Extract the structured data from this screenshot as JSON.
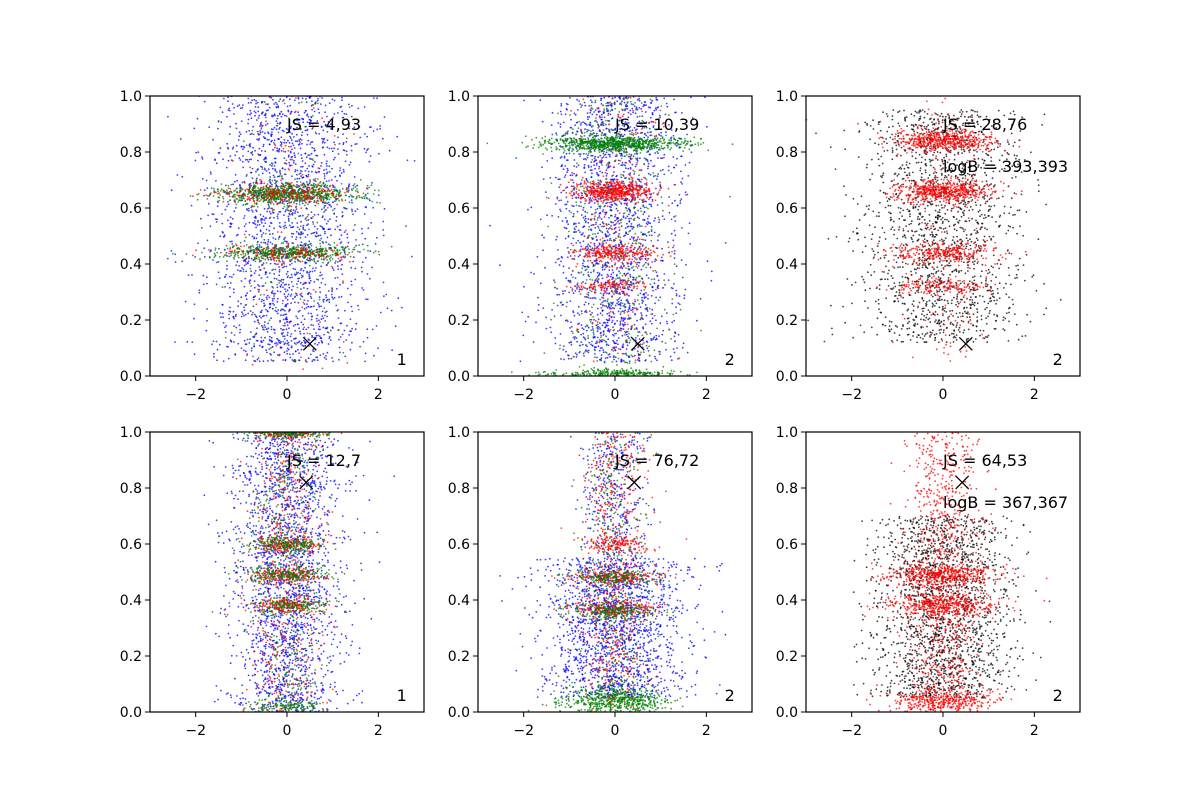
{
  "figure": {
    "title": ""
  },
  "chart_data": [
    {
      "type": "scatter",
      "panel": "top-left",
      "title": "",
      "xlabel": "",
      "ylabel": "",
      "xlim": [
        -3,
        3
      ],
      "ylim": [
        0,
        1
      ],
      "xticks": [
        -2,
        0,
        2
      ],
      "yticks": [
        0.0,
        0.2,
        0.4,
        0.6,
        0.8,
        1.0
      ],
      "xtick_labels": [
        "−2",
        "0",
        "2"
      ],
      "ytick_labels": [
        "0.0",
        "0.2",
        "0.4",
        "0.6",
        "0.8",
        "1.0"
      ],
      "series": [
        {
          "name": "blue",
          "color": "#0000ff",
          "count": 2000,
          "bands": [],
          "background": {
            "sd": 0.9,
            "ymin": 0.05,
            "ymax": 1.0
          }
        },
        {
          "name": "green",
          "color": "#008000",
          "count": 1400,
          "bands": [
            {
              "y": 0.65,
              "sd_x": 0.75,
              "sd_y": 0.018,
              "w": 0.55
            },
            {
              "y": 0.44,
              "sd_x": 0.75,
              "sd_y": 0.015,
              "w": 0.35
            }
          ],
          "background": {
            "sd": 0.6,
            "ymin": 0.02,
            "ymax": 1.0,
            "w": 0.1
          }
        },
        {
          "name": "red",
          "color": "#ff0000",
          "count": 500,
          "bands": [
            {
              "y": 0.65,
              "sd_x": 0.75,
              "sd_y": 0.018,
              "w": 0.5
            },
            {
              "y": 0.44,
              "sd_x": 0.75,
              "sd_y": 0.015,
              "w": 0.3
            }
          ],
          "background": {
            "sd": 0.6,
            "ymin": 0.02,
            "ymax": 1.0,
            "w": 0.2
          }
        }
      ],
      "marker": {
        "x": 0.5,
        "y": 0.115,
        "symbol": "X"
      },
      "annotations": [
        {
          "text": "JS = 4,93",
          "x": 0.0,
          "y": 0.9
        },
        {
          "text": "1",
          "x": 2.4,
          "y": 0.06
        }
      ]
    },
    {
      "type": "scatter",
      "panel": "top-middle",
      "title": "",
      "xlabel": "",
      "ylabel": "",
      "xlim": [
        -3,
        3
      ],
      "ylim": [
        0,
        1
      ],
      "xticks": [
        -2,
        0,
        2
      ],
      "yticks": [
        0.0,
        0.2,
        0.4,
        0.6,
        0.8,
        1.0
      ],
      "xtick_labels": [
        "−2",
        "0",
        "2"
      ],
      "ytick_labels": [
        "0.0",
        "0.2",
        "0.4",
        "0.6",
        "0.8",
        "1.0"
      ],
      "series": [
        {
          "name": "blue",
          "color": "#0000ff",
          "count": 1900,
          "bands": [],
          "background": {
            "sd": 0.7,
            "ymin": 0.05,
            "ymax": 1.0
          }
        },
        {
          "name": "red",
          "color": "#ff0000",
          "count": 1200,
          "bands": [
            {
              "y": 0.66,
              "sd_x": 0.45,
              "sd_y": 0.018,
              "w": 0.45
            },
            {
              "y": 0.44,
              "sd_x": 0.45,
              "sd_y": 0.015,
              "w": 0.25
            },
            {
              "y": 0.32,
              "sd_x": 0.45,
              "sd_y": 0.012,
              "w": 0.1
            }
          ],
          "background": {
            "sd": 0.5,
            "ymin": 0.05,
            "ymax": 1.0,
            "w": 0.2
          }
        },
        {
          "name": "green",
          "color": "#008000",
          "count": 1500,
          "bands": [
            {
              "y": 0.83,
              "sd_x": 0.75,
              "sd_y": 0.014,
              "w": 0.55
            },
            {
              "y": 0.01,
              "sd_x": 0.7,
              "sd_y": 0.006,
              "w": 0.15
            }
          ],
          "background": {
            "sd": 0.6,
            "ymin": 0.02,
            "ymax": 1.0,
            "w": 0.3
          }
        }
      ],
      "marker": {
        "x": 0.5,
        "y": 0.115,
        "symbol": "X"
      },
      "annotations": [
        {
          "text": "JS = 10,39",
          "x": 0.0,
          "y": 0.9
        },
        {
          "text": "2",
          "x": 2.4,
          "y": 0.06
        }
      ]
    },
    {
      "type": "scatter",
      "panel": "top-right",
      "title": "",
      "xlabel": "",
      "ylabel": "",
      "xlim": [
        -3,
        3
      ],
      "ylim": [
        0,
        1
      ],
      "xticks": [
        -2,
        0,
        2
      ],
      "yticks": [
        0.0,
        0.2,
        0.4,
        0.6,
        0.8,
        1.0
      ],
      "xtick_labels": [
        "−2",
        "0",
        "2"
      ],
      "ytick_labels": [
        "0.0",
        "0.2",
        "0.4",
        "0.6",
        "0.8",
        "1.0"
      ],
      "series": [
        {
          "name": "black",
          "color": "#000000",
          "count": 1700,
          "bands": [],
          "background": {
            "sd": 0.85,
            "ymin": 0.12,
            "ymax": 0.95
          }
        },
        {
          "name": "red",
          "color": "#ff0000",
          "count": 1700,
          "bands": [
            {
              "y": 0.84,
              "sd_x": 0.55,
              "sd_y": 0.02,
              "w": 0.3
            },
            {
              "y": 0.66,
              "sd_x": 0.55,
              "sd_y": 0.02,
              "w": 0.3
            },
            {
              "y": 0.44,
              "sd_x": 0.55,
              "sd_y": 0.02,
              "w": 0.2
            },
            {
              "y": 0.32,
              "sd_x": 0.5,
              "sd_y": 0.015,
              "w": 0.1
            }
          ],
          "background": {
            "sd": 0.5,
            "ymin": 0.05,
            "ymax": 1.0,
            "w": 0.1
          }
        }
      ],
      "marker": {
        "x": 0.5,
        "y": 0.115,
        "symbol": "X"
      },
      "annotations": [
        {
          "text": "JS = 28,76",
          "x": 0.0,
          "y": 0.9
        },
        {
          "text": "logB = 393,393",
          "x": 0.0,
          "y": 0.75
        },
        {
          "text": "2",
          "x": 2.4,
          "y": 0.06
        }
      ]
    },
    {
      "type": "scatter",
      "panel": "bottom-left",
      "title": "",
      "xlabel": "",
      "ylabel": "",
      "xlim": [
        -3,
        3
      ],
      "ylim": [
        0,
        1
      ],
      "xticks": [
        -2,
        0,
        2
      ],
      "yticks": [
        0.0,
        0.2,
        0.4,
        0.6,
        0.8,
        1.0
      ],
      "xtick_labels": [
        "−2",
        "0",
        "2"
      ],
      "ytick_labels": [
        "0.0",
        "0.2",
        "0.4",
        "0.6",
        "0.8",
        "1.0"
      ],
      "series": [
        {
          "name": "blue",
          "color": "#0000ff",
          "count": 2000,
          "bands": [],
          "background": {
            "sd": 0.6,
            "ymin": 0.0,
            "ymax": 1.0
          }
        },
        {
          "name": "red",
          "color": "#ff0000",
          "count": 1300,
          "bands": [
            {
              "y": 1.0,
              "sd_x": 0.4,
              "sd_y": 0.01,
              "w": 0.15
            },
            {
              "y": 0.6,
              "sd_x": 0.4,
              "sd_y": 0.015,
              "w": 0.15
            },
            {
              "y": 0.49,
              "sd_x": 0.4,
              "sd_y": 0.015,
              "w": 0.15
            },
            {
              "y": 0.38,
              "sd_x": 0.4,
              "sd_y": 0.015,
              "w": 0.15
            }
          ],
          "background": {
            "sd": 0.4,
            "ymin": 0.0,
            "ymax": 1.0,
            "w": 0.4
          }
        },
        {
          "name": "green",
          "color": "#008000",
          "count": 1300,
          "bands": [
            {
              "y": 1.0,
              "sd_x": 0.5,
              "sd_y": 0.01,
              "w": 0.2
            },
            {
              "y": 0.6,
              "sd_x": 0.45,
              "sd_y": 0.015,
              "w": 0.15
            },
            {
              "y": 0.49,
              "sd_x": 0.45,
              "sd_y": 0.015,
              "w": 0.15
            },
            {
              "y": 0.38,
              "sd_x": 0.45,
              "sd_y": 0.015,
              "w": 0.1
            },
            {
              "y": 0.02,
              "sd_x": 0.4,
              "sd_y": 0.01,
              "w": 0.1
            }
          ],
          "background": {
            "sd": 0.4,
            "ymin": 0.0,
            "ymax": 1.0,
            "w": 0.3
          }
        }
      ],
      "marker": {
        "x": 0.42,
        "y": 0.82,
        "symbol": "X"
      },
      "annotations": [
        {
          "text": "JS = 12,7",
          "x": 0.0,
          "y": 0.9
        },
        {
          "text": "1",
          "x": 2.4,
          "y": 0.06
        }
      ]
    },
    {
      "type": "scatter",
      "panel": "bottom-middle",
      "title": "",
      "xlabel": "",
      "ylabel": "",
      "xlim": [
        -3,
        3
      ],
      "ylim": [
        0,
        1
      ],
      "xticks": [
        -2,
        0,
        2
      ],
      "yticks": [
        0.0,
        0.2,
        0.4,
        0.6,
        0.8,
        1.0
      ],
      "xtick_labels": [
        "−2",
        "0",
        "2"
      ],
      "ytick_labels": [
        "0.0",
        "0.2",
        "0.4",
        "0.6",
        "0.8",
        "1.0"
      ],
      "series": [
        {
          "name": "blue",
          "color": "#0000ff",
          "count": 2000,
          "bands": [],
          "background": {
            "sd": 0.75,
            "ymin": 0.05,
            "ymax": 0.55,
            "upper": {
              "sd": 0.35,
              "ymin": 0.55,
              "ymax": 1.0,
              "w": 0.2
            }
          }
        },
        {
          "name": "red",
          "color": "#ff0000",
          "count": 1200,
          "bands": [
            {
              "y": 0.48,
              "sd_x": 0.5,
              "sd_y": 0.015,
              "w": 0.2
            },
            {
              "y": 0.37,
              "sd_x": 0.5,
              "sd_y": 0.015,
              "w": 0.2
            },
            {
              "y": 0.6,
              "sd_x": 0.35,
              "sd_y": 0.015,
              "w": 0.1
            }
          ],
          "background": {
            "sd": 0.35,
            "ymin": 0.0,
            "ymax": 1.0,
            "w": 0.5
          }
        },
        {
          "name": "green",
          "color": "#008000",
          "count": 1300,
          "bands": [
            {
              "y": 0.48,
              "sd_x": 0.5,
              "sd_y": 0.015,
              "w": 0.15
            },
            {
              "y": 0.36,
              "sd_x": 0.5,
              "sd_y": 0.015,
              "w": 0.15
            },
            {
              "y": 0.04,
              "sd_x": 0.6,
              "sd_y": 0.025,
              "w": 0.4
            }
          ],
          "background": {
            "sd": 0.4,
            "ymin": 0.0,
            "ymax": 1.0,
            "w": 0.3
          }
        }
      ],
      "marker": {
        "x": 0.42,
        "y": 0.82,
        "symbol": "X"
      },
      "annotations": [
        {
          "text": "JS = 76,72",
          "x": 0.0,
          "y": 0.9
        },
        {
          "text": "2",
          "x": 2.4,
          "y": 0.06
        }
      ]
    },
    {
      "type": "scatter",
      "panel": "bottom-right",
      "title": "",
      "xlabel": "",
      "ylabel": "",
      "xlim": [
        -3,
        3
      ],
      "ylim": [
        0,
        1
      ],
      "xticks": [
        -2,
        0,
        2
      ],
      "yticks": [
        0.0,
        0.2,
        0.4,
        0.6,
        0.8,
        1.0
      ],
      "xtick_labels": [
        "−2",
        "0",
        "2"
      ],
      "ytick_labels": [
        "0.0",
        "0.2",
        "0.4",
        "0.6",
        "0.8",
        "1.0"
      ],
      "series": [
        {
          "name": "black",
          "color": "#000000",
          "count": 1800,
          "bands": [],
          "background": {
            "sd": 0.75,
            "ymin": 0.05,
            "ymax": 0.7
          }
        },
        {
          "name": "red",
          "color": "#ff0000",
          "count": 2200,
          "bands": [
            {
              "y": 0.49,
              "sd_x": 0.6,
              "sd_y": 0.02,
              "w": 0.2
            },
            {
              "y": 0.38,
              "sd_x": 0.6,
              "sd_y": 0.02,
              "w": 0.2
            },
            {
              "y": 0.04,
              "sd_x": 0.55,
              "sd_y": 0.02,
              "w": 0.15
            }
          ],
          "background": {
            "sd": 0.4,
            "ymin": 0.0,
            "ymax": 1.0,
            "w": 0.45
          }
        }
      ],
      "marker": {
        "x": 0.42,
        "y": 0.82,
        "symbol": "X"
      },
      "annotations": [
        {
          "text": "JS = 64,53",
          "x": 0.0,
          "y": 0.9
        },
        {
          "text": "logB = 367,367",
          "x": 0.0,
          "y": 0.75
        },
        {
          "text": "2",
          "x": 2.4,
          "y": 0.06
        }
      ]
    }
  ]
}
